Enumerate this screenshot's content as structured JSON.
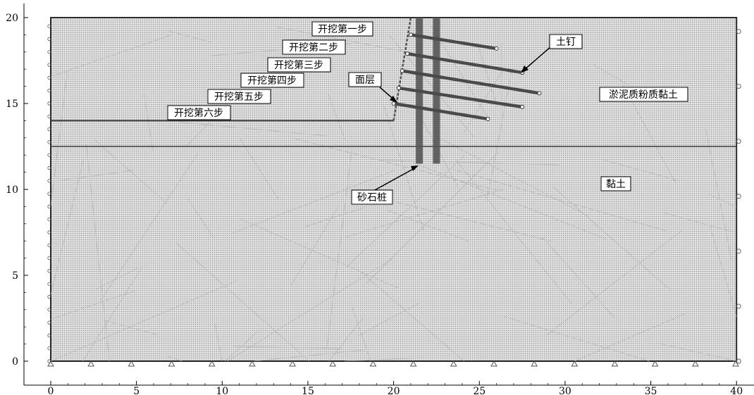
{
  "x_axis": {
    "range": [
      0,
      40
    ],
    "ticks": [
      "0",
      "5",
      "10",
      "15",
      "20",
      "25",
      "30",
      "35",
      "40"
    ]
  },
  "y_axis": {
    "range": [
      0,
      20
    ],
    "ticks": [
      "0",
      "5",
      "10",
      "15",
      "20"
    ]
  },
  "domain_box": {
    "x_min": 0,
    "x_max": 40,
    "y_min": 0,
    "y_max": 20
  },
  "soil_boundary_y": 12.5,
  "excavation_floor": {
    "x_end": 20,
    "y": 14
  },
  "facing": {
    "bottom": [
      20,
      14
    ],
    "top": [
      21,
      20
    ]
  },
  "gravel_piles": [
    {
      "x": 21.5,
      "y_top": 20,
      "y_bottom": 11.5
    },
    {
      "x": 22.5,
      "y_top": 20,
      "y_bottom": 11.5
    }
  ],
  "soil_nails": [
    {
      "x1": 21.0,
      "y1": 19.0,
      "x2": 26.0,
      "y2": 18.2
    },
    {
      "x1": 20.8,
      "y1": 17.9,
      "x2": 27.5,
      "y2": 16.8
    },
    {
      "x1": 20.5,
      "y1": 16.9,
      "x2": 28.5,
      "y2": 15.6
    },
    {
      "x1": 20.3,
      "y1": 15.9,
      "x2": 27.5,
      "y2": 14.8
    },
    {
      "x1": 20.0,
      "y1": 15.0,
      "x2": 25.5,
      "y2": 14.1
    }
  ],
  "labels": {
    "step1": "开挖第一步",
    "step2": "开挖第二步",
    "step3": "开挖第三步",
    "step4": "开挖第四步",
    "step5": "开挖第五步",
    "step6": "开挖第六步",
    "facing_layer": "面层",
    "soil_nail": "土钉",
    "silty_clay": "淤泥质粉质黏土",
    "clay": "黏土",
    "gravel_pile": "砂石桩"
  },
  "colors": {
    "mesh_fill": "#d9d9d9",
    "frame": "#2a2a2a",
    "pile": "#555555",
    "nail": "#4a4a4a"
  }
}
